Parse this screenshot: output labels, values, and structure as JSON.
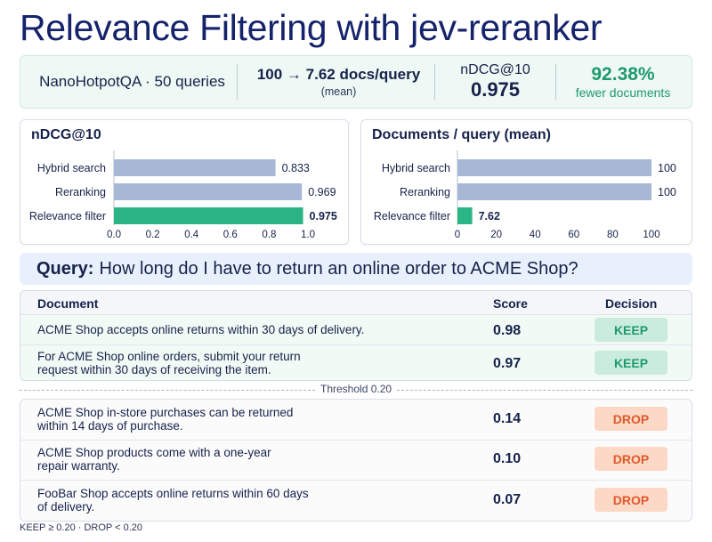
{
  "title": "Relevance Filtering with jev-reranker",
  "summary": {
    "dataset": "NanoHotpotQA · 50 queries",
    "docs_reduction": "100 → 7.62 docs/query",
    "docs_note": "(mean)",
    "metric_label": "nDCG@10",
    "metric_value": "0.975",
    "savings_value": "92.38%",
    "savings_label": "fewer documents"
  },
  "colors": {
    "bar_base": "#a7b8d6",
    "bar_highlight": "#2bb587",
    "keep": "#1f9a6e",
    "drop": "#e0582a"
  },
  "chart_data": [
    {
      "type": "bar",
      "orientation": "horizontal",
      "title": "nDCG@10",
      "categories": [
        "Hybrid search",
        "Reranking",
        "Relevance filter"
      ],
      "values": [
        0.833,
        0.969,
        0.975
      ],
      "value_labels": [
        "0.833",
        "0.969",
        "0.975"
      ],
      "xlim": [
        0,
        1.0
      ],
      "xticks": [
        "0.0",
        "0.2",
        "0.4",
        "0.6",
        "0.8",
        "1.0"
      ],
      "highlight_index": 2
    },
    {
      "type": "bar",
      "orientation": "horizontal",
      "title": "Documents / query (mean)",
      "categories": [
        "Hybrid search",
        "Reranking",
        "Relevance filter"
      ],
      "values": [
        100,
        100,
        7.62
      ],
      "value_labels": [
        "100",
        "100",
        "7.62"
      ],
      "xlim": [
        0,
        100
      ],
      "xticks": [
        "0",
        "20",
        "40",
        "60",
        "80",
        "100"
      ],
      "highlight_index": 2
    }
  ],
  "query": {
    "label": "Query:",
    "text": "How long do I have to return an online order to ACME Shop?"
  },
  "table": {
    "headers": {
      "document": "Document",
      "score": "Score",
      "decision": "Decision"
    },
    "kept": [
      {
        "lines": [
          "ACME Shop accepts online returns within 30 days of delivery."
        ],
        "score": "0.98",
        "decision": "KEEP"
      },
      {
        "lines": [
          "For ACME Shop online orders, submit your return",
          "request within 30 days of receiving the item."
        ],
        "score": "0.97",
        "decision": "KEEP"
      }
    ],
    "threshold_label": "Threshold 0.20",
    "dropped": [
      {
        "lines": [
          "ACME Shop in-store purchases can be returned",
          "within 14 days of purchase."
        ],
        "score": "0.14",
        "decision": "DROP"
      },
      {
        "lines": [
          "ACME Shop products come with a one-year",
          "repair warranty."
        ],
        "score": "0.10",
        "decision": "DROP"
      },
      {
        "lines": [
          "FooBar Shop accepts online returns within 60 days",
          "of delivery."
        ],
        "score": "0.07",
        "decision": "DROP"
      }
    ]
  },
  "legend_note": "KEEP ≥ 0.20 · DROP < 0.20"
}
